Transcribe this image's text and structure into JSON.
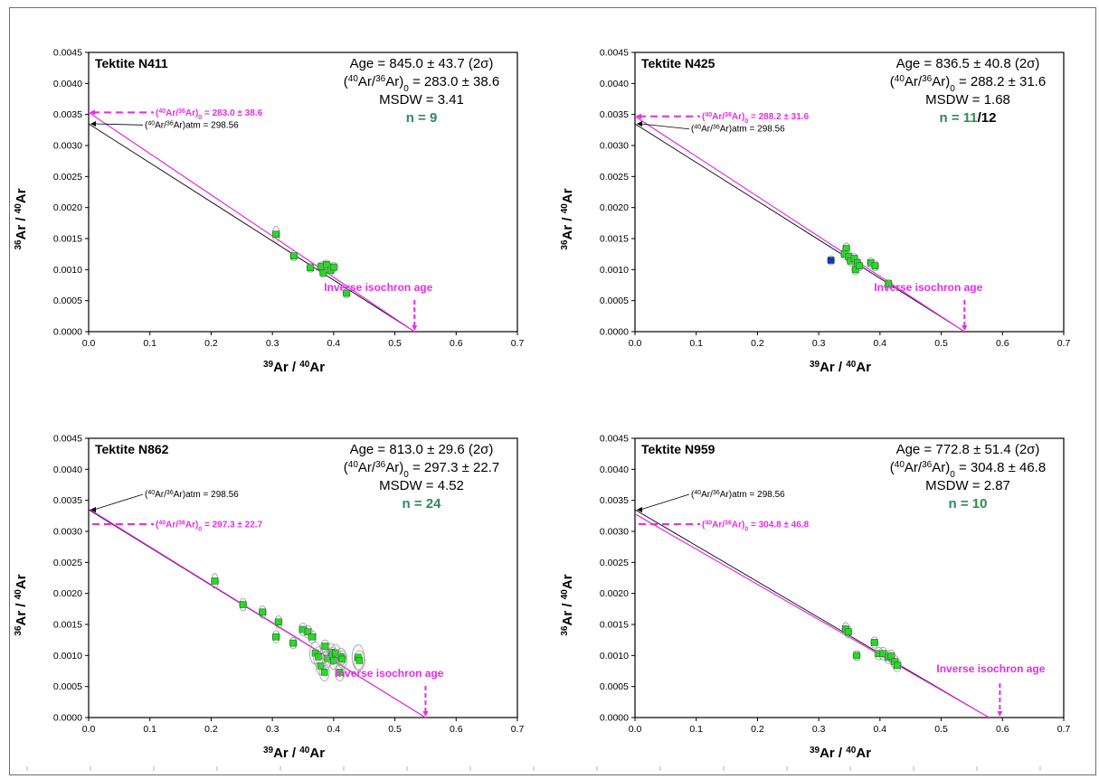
{
  "chart_data": [
    {
      "type": "scatter",
      "title": "Tektite N411",
      "xlabel": {
        "a": "39",
        "b": "Ar / ",
        "c": "40",
        "d": "Ar"
      },
      "ylabel": {
        "a": "36",
        "b": "Ar / ",
        "c": "40",
        "d": "Ar"
      },
      "xlim": [
        0,
        0.7
      ],
      "ylim": [
        0,
        0.0045
      ],
      "xticks": [
        "0.0",
        "0.1",
        "0.2",
        "0.3",
        "0.4",
        "0.5",
        "0.6",
        "0.7"
      ],
      "yticks": [
        "0.0000",
        "0.0005",
        "0.0010",
        "0.0015",
        "0.0020",
        "0.0025",
        "0.0030",
        "0.0035",
        "0.0040",
        "0.0045"
      ],
      "stats": {
        "age": "Age = 845.0 ± 43.7 (2σ)",
        "r0_label": "(40Ar/36Ar)0 = 283.0 ± 38.6",
        "msdw": "MSDW = 3.41",
        "n": "n = 9",
        "n_extra": ""
      },
      "intercept_label": "(40Ar/36Ar)0 = 283.0 ± 38.6",
      "atm_label": "(40Ar/36Ar)atm = 298.56",
      "age_annotation": "Inverse isochron age",
      "atm_intercept": 0.00335,
      "regression": {
        "y0": 0.003534,
        "x_int": 0.532
      },
      "points": [
        {
          "x": 0.306,
          "y": 0.00157,
          "sx": 0.004,
          "sy": 0.00013,
          "color": "green"
        },
        {
          "x": 0.335,
          "y": 0.00122,
          "sx": 0.005,
          "sy": 8e-05,
          "color": "green"
        },
        {
          "x": 0.362,
          "y": 0.00103,
          "sx": 0.006,
          "sy": 7e-05,
          "color": "green"
        },
        {
          "x": 0.38,
          "y": 0.00105,
          "sx": 0.007,
          "sy": 7e-05,
          "color": "green"
        },
        {
          "x": 0.388,
          "y": 0.00108,
          "sx": 0.007,
          "sy": 7e-05,
          "color": "green"
        },
        {
          "x": 0.383,
          "y": 0.00095,
          "sx": 0.006,
          "sy": 7e-05,
          "color": "green"
        },
        {
          "x": 0.395,
          "y": 0.00099,
          "sx": 0.007,
          "sy": 7e-05,
          "color": "green"
        },
        {
          "x": 0.4,
          "y": 0.00104,
          "sx": 0.007,
          "sy": 7e-05,
          "color": "green"
        },
        {
          "x": 0.421,
          "y": 0.00062,
          "sx": 0.005,
          "sy": 7e-05,
          "color": "green"
        }
      ]
    },
    {
      "type": "scatter",
      "title": "Tektite N425",
      "xlabel": {
        "a": "39",
        "b": "Ar / ",
        "c": "40",
        "d": "Ar"
      },
      "ylabel": {
        "a": "36",
        "b": "Ar / ",
        "c": "40",
        "d": "Ar"
      },
      "xlim": [
        0,
        0.7
      ],
      "ylim": [
        0,
        0.0045
      ],
      "xticks": [
        "0.0",
        "0.1",
        "0.2",
        "0.3",
        "0.4",
        "0.5",
        "0.6",
        "0.7"
      ],
      "yticks": [
        "0.0000",
        "0.0005",
        "0.0010",
        "0.0015",
        "0.0020",
        "0.0025",
        "0.0030",
        "0.0035",
        "0.0040",
        "0.0045"
      ],
      "stats": {
        "age": "Age = 836.5 ± 40.8 (2σ)",
        "r0_label": "(40Ar/36Ar)0 = 288.2 ± 31.6",
        "msdw": "MSDW = 1.68",
        "n": "n = 11",
        "n_extra": "/12"
      },
      "intercept_label": "(40Ar/36Ar)0 = 288.2 ± 31.6",
      "atm_label": "(40Ar/36Ar)atm = 298.56",
      "age_annotation": "Inverse isochron age",
      "atm_intercept": 0.00335,
      "regression": {
        "y0": 0.00347,
        "x_int": 0.538
      },
      "points": [
        {
          "x": 0.32,
          "y": 0.00115,
          "sx": 0.004,
          "sy": 5e-05,
          "color": "blue"
        },
        {
          "x": 0.345,
          "y": 0.00134,
          "sx": 0.006,
          "sy": 9e-05,
          "color": "green"
        },
        {
          "x": 0.342,
          "y": 0.00125,
          "sx": 0.006,
          "sy": 8e-05,
          "color": "green"
        },
        {
          "x": 0.349,
          "y": 0.00121,
          "sx": 0.006,
          "sy": 8e-05,
          "color": "green"
        },
        {
          "x": 0.352,
          "y": 0.00114,
          "sx": 0.006,
          "sy": 8e-05,
          "color": "green"
        },
        {
          "x": 0.358,
          "y": 0.00118,
          "sx": 0.006,
          "sy": 8e-05,
          "color": "green"
        },
        {
          "x": 0.363,
          "y": 0.00111,
          "sx": 0.006,
          "sy": 8e-05,
          "color": "green"
        },
        {
          "x": 0.36,
          "y": 0.001,
          "sx": 0.006,
          "sy": 8e-05,
          "color": "green"
        },
        {
          "x": 0.366,
          "y": 0.00106,
          "sx": 0.006,
          "sy": 8e-05,
          "color": "green"
        },
        {
          "x": 0.385,
          "y": 0.00111,
          "sx": 0.006,
          "sy": 8e-05,
          "color": "green"
        },
        {
          "x": 0.392,
          "y": 0.00106,
          "sx": 0.006,
          "sy": 8e-05,
          "color": "green"
        },
        {
          "x": 0.414,
          "y": 0.00077,
          "sx": 0.005,
          "sy": 6e-05,
          "color": "green"
        }
      ]
    },
    {
      "type": "scatter",
      "title": "Tektite N862",
      "xlabel": {
        "a": "39",
        "b": "Ar / ",
        "c": "40",
        "d": "Ar"
      },
      "ylabel": {
        "a": "36",
        "b": "Ar / ",
        "c": "40",
        "d": "Ar"
      },
      "xlim": [
        0,
        0.7
      ],
      "ylim": [
        0,
        0.0045
      ],
      "xticks": [
        "0.0",
        "0.1",
        "0.2",
        "0.3",
        "0.4",
        "0.5",
        "0.6",
        "0.7"
      ],
      "yticks": [
        "0.0000",
        "0.0005",
        "0.0010",
        "0.0015",
        "0.0020",
        "0.0025",
        "0.0030",
        "0.0035",
        "0.0040",
        "0.0045"
      ],
      "stats": {
        "age": "Age = 813.0 ± 29.6 (2σ)",
        "r0_label": "(40Ar/36Ar)0 = 297.3 ± 22.7",
        "msdw": "MSDW = 4.52",
        "n": "n = 24",
        "n_extra": ""
      },
      "intercept_label": "(40Ar/36Ar)0 = 297.3 ± 22.7",
      "atm_label": "(40Ar/36Ar)atm = 298.56",
      "age_annotation": "Inverse isochron age",
      "atm_intercept": 0.00335,
      "regression": {
        "y0": 0.003364,
        "x_int": 0.55
      },
      "points": [
        {
          "x": 0.206,
          "y": 0.0022,
          "sx": 0.004,
          "sy": 0.00012,
          "color": "green"
        },
        {
          "x": 0.252,
          "y": 0.00182,
          "sx": 0.005,
          "sy": 0.0001,
          "color": "green"
        },
        {
          "x": 0.284,
          "y": 0.0017,
          "sx": 0.006,
          "sy": 0.0001,
          "color": "green"
        },
        {
          "x": 0.31,
          "y": 0.00154,
          "sx": 0.006,
          "sy": 0.0001,
          "color": "green"
        },
        {
          "x": 0.306,
          "y": 0.0013,
          "sx": 0.006,
          "sy": 0.0001,
          "color": "green"
        },
        {
          "x": 0.334,
          "y": 0.0012,
          "sx": 0.006,
          "sy": 9e-05,
          "color": "green"
        },
        {
          "x": 0.35,
          "y": 0.00142,
          "sx": 0.007,
          "sy": 0.0001,
          "color": "green"
        },
        {
          "x": 0.358,
          "y": 0.00138,
          "sx": 0.007,
          "sy": 0.0001,
          "color": "green"
        },
        {
          "x": 0.365,
          "y": 0.0013,
          "sx": 0.007,
          "sy": 0.0001,
          "color": "green"
        },
        {
          "x": 0.37,
          "y": 0.00104,
          "sx": 0.009,
          "sy": 0.00018,
          "color": "green"
        },
        {
          "x": 0.375,
          "y": 0.00098,
          "sx": 0.008,
          "sy": 0.00016,
          "color": "green"
        },
        {
          "x": 0.379,
          "y": 0.00083,
          "sx": 0.008,
          "sy": 0.00014,
          "color": "green"
        },
        {
          "x": 0.385,
          "y": 0.00073,
          "sx": 0.008,
          "sy": 0.00014,
          "color": "green"
        },
        {
          "x": 0.386,
          "y": 0.00115,
          "sx": 0.007,
          "sy": 0.0001,
          "color": "green"
        },
        {
          "x": 0.39,
          "y": 0.00095,
          "sx": 0.008,
          "sy": 0.00014,
          "color": "green"
        },
        {
          "x": 0.396,
          "y": 0.00105,
          "sx": 0.008,
          "sy": 0.00014,
          "color": "green"
        },
        {
          "x": 0.398,
          "y": 0.00099,
          "sx": 0.008,
          "sy": 0.00014,
          "color": "green"
        },
        {
          "x": 0.4,
          "y": 0.00092,
          "sx": 0.008,
          "sy": 0.00014,
          "color": "green"
        },
        {
          "x": 0.403,
          "y": 0.00104,
          "sx": 0.008,
          "sy": 0.00014,
          "color": "green"
        },
        {
          "x": 0.41,
          "y": 0.00073,
          "sx": 0.008,
          "sy": 0.00014,
          "color": "green"
        },
        {
          "x": 0.412,
          "y": 0.00098,
          "sx": 0.008,
          "sy": 0.00014,
          "color": "green"
        },
        {
          "x": 0.414,
          "y": 0.00094,
          "sx": 0.008,
          "sy": 0.00014,
          "color": "green"
        },
        {
          "x": 0.44,
          "y": 0.00097,
          "sx": 0.01,
          "sy": 0.0002,
          "color": "green"
        },
        {
          "x": 0.442,
          "y": 0.00092,
          "sx": 0.009,
          "sy": 0.00016,
          "color": "green"
        }
      ]
    },
    {
      "type": "scatter",
      "title": "Tektite N959",
      "xlabel": {
        "a": "39",
        "b": "Ar / ",
        "c": "40",
        "d": "Ar"
      },
      "ylabel": {
        "a": "36",
        "b": "Ar / ",
        "c": "40",
        "d": "Ar"
      },
      "xlim": [
        0,
        0.7
      ],
      "ylim": [
        0,
        0.0045
      ],
      "xticks": [
        "0.0",
        "0.1",
        "0.2",
        "0.3",
        "0.4",
        "0.5",
        "0.6",
        "0.7"
      ],
      "yticks": [
        "0.0000",
        "0.0005",
        "0.0010",
        "0.0015",
        "0.0020",
        "0.0025",
        "0.0030",
        "0.0035",
        "0.0040",
        "0.0045"
      ],
      "stats": {
        "age": "Age = 772.8 ± 51.4 (2σ)",
        "r0_label": "(40Ar/36Ar)0 = 304.8 ± 46.8",
        "msdw": "MSDW = 2.87",
        "n": "n = 10",
        "n_extra": ""
      },
      "intercept_label": "(40Ar/36Ar)0 = 304.8 ± 46.8",
      "atm_label": "(40Ar/36Ar)atm = 298.56",
      "age_annotation": "Inverse isochron age",
      "atm_intercept": 0.00335,
      "regression": {
        "y0": 0.003281,
        "x_int": 0.578
      },
      "points": [
        {
          "x": 0.344,
          "y": 0.00143,
          "sx": 0.006,
          "sy": 0.0001,
          "color": "green"
        },
        {
          "x": 0.348,
          "y": 0.00138,
          "sx": 0.006,
          "sy": 0.0001,
          "color": "green"
        },
        {
          "x": 0.362,
          "y": 0.001,
          "sx": 0.005,
          "sy": 8e-05,
          "color": "green"
        },
        {
          "x": 0.391,
          "y": 0.00121,
          "sx": 0.006,
          "sy": 9e-05,
          "color": "green"
        },
        {
          "x": 0.398,
          "y": 0.00103,
          "sx": 0.007,
          "sy": 0.0001,
          "color": "green"
        },
        {
          "x": 0.405,
          "y": 0.00103,
          "sx": 0.007,
          "sy": 0.0001,
          "color": "green"
        },
        {
          "x": 0.414,
          "y": 0.00097,
          "sx": 0.007,
          "sy": 0.0001,
          "color": "green"
        },
        {
          "x": 0.418,
          "y": 0.00099,
          "sx": 0.007,
          "sy": 0.0001,
          "color": "green"
        },
        {
          "x": 0.424,
          "y": 0.0009,
          "sx": 0.007,
          "sy": 0.0001,
          "color": "green"
        },
        {
          "x": 0.428,
          "y": 0.00084,
          "sx": 0.007,
          "sy": 0.0001,
          "color": "green"
        }
      ]
    }
  ],
  "colors": {
    "magenta": "#e62ce6",
    "green_text": "#2e8b57",
    "marker_green": "#22dd22",
    "marker_blue": "#1030d0",
    "axis": "#000000"
  }
}
